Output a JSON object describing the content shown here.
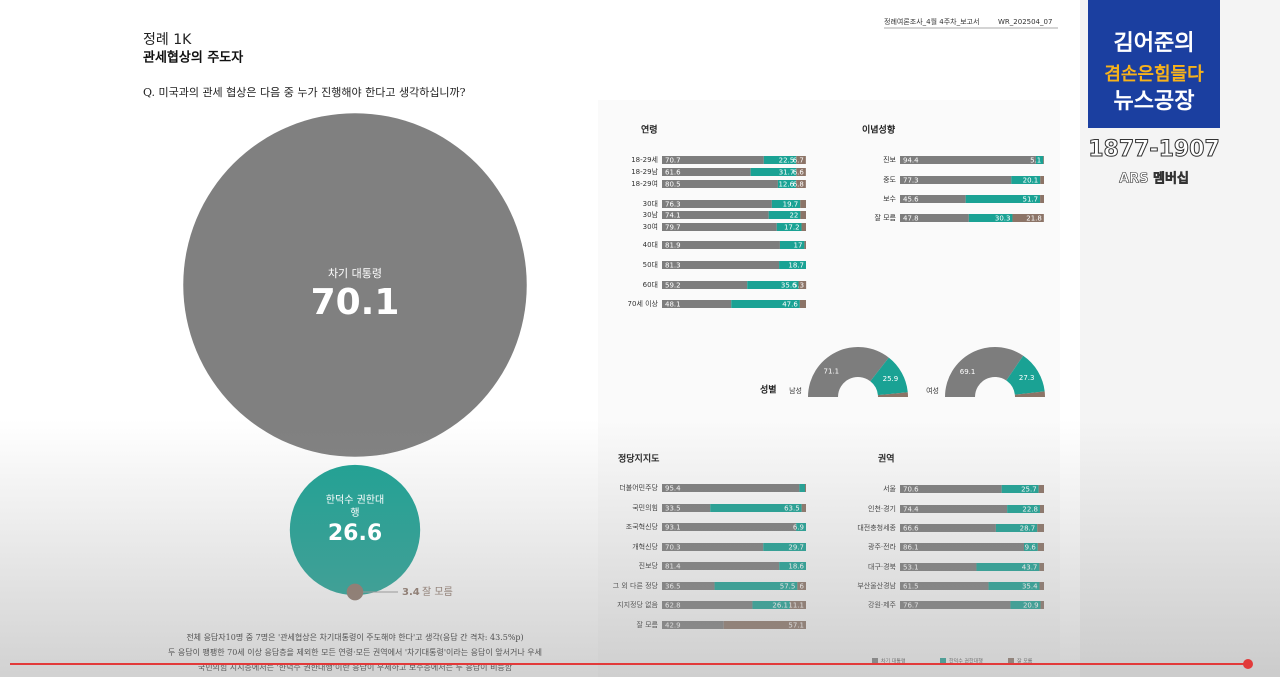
{
  "header": {
    "label": "정례 1K",
    "title": "관세협상의 주도자",
    "question": "Q. 미국과의 관세 협상은 다음 중 누가 진행해야 한다고 생각하십니까?",
    "report": "정례여론조사_4월 4주차_보고서",
    "code": "WR_202504_07"
  },
  "logo": {
    "line1": "김어준의",
    "line2": "겸손은힘들다",
    "line3": "뉴스공장",
    "phone": "1877-1907",
    "membership": "ARS 멤버십"
  },
  "legend": {
    "names": [
      "차기 대통령",
      "한덕수 권한대행",
      "잘 모름"
    ],
    "colors": [
      "#7d7d7d",
      "#1aa294",
      "#8c7467"
    ]
  },
  "chart_data": [
    {
      "type": "bubble",
      "categories": [
        "차기 대통령",
        "한덕수 권한대행",
        "잘 모름"
      ],
      "values": [
        70.1,
        26.6,
        3.4
      ],
      "colors": [
        "#808080",
        "#1aa294",
        "#8c7467"
      ]
    },
    {
      "type": "stacked_bar",
      "title": "연령",
      "xlim": [
        0,
        100
      ],
      "categories": [
        "18-29세",
        "18-29남",
        "18-29여",
        "30대",
        "30남",
        "30여",
        "40대",
        "50대",
        "60대",
        "70세 이상"
      ],
      "series": [
        {
          "values": [
            70.7,
            61.6,
            80.5,
            76.3,
            74.1,
            79.7,
            81.9,
            81.3,
            59.2,
            48.1
          ]
        },
        {
          "values": [
            22.5,
            31.7,
            12.6,
            19.7,
            22.0,
            17.2,
            17.0,
            18.7,
            35.6,
            47.6
          ]
        },
        {
          "values": [
            6.7,
            6.6,
            6.8,
            4.0,
            3.9,
            3.1,
            1.1,
            0,
            5.3,
            4.3
          ]
        }
      ]
    },
    {
      "type": "stacked_bar",
      "title": "이념성향",
      "xlim": [
        0,
        100
      ],
      "categories": [
        "진보",
        "중도",
        "보수",
        "잘 모름"
      ],
      "series": [
        {
          "values": [
            94.4,
            77.3,
            45.6,
            47.8
          ]
        },
        {
          "values": [
            5.1,
            20.1,
            51.7,
            30.3
          ]
        },
        {
          "values": [
            0.5,
            2.6,
            2.7,
            21.8
          ]
        }
      ]
    },
    {
      "type": "donut",
      "title": "성별",
      "categories": [
        "남성",
        "여성"
      ],
      "series": [
        {
          "values": [
            71.1,
            69.1
          ]
        },
        {
          "values": [
            25.9,
            27.3
          ]
        },
        {
          "values": [
            3.0,
            3.6
          ]
        }
      ]
    },
    {
      "type": "stacked_bar",
      "title": "정당지지도",
      "xlim": [
        0,
        100
      ],
      "categories": [
        "더불어민주당",
        "국민의힘",
        "조국혁신당",
        "개혁신당",
        "진보당",
        "그 외 다른 정당",
        "지지정당 없음",
        "잘 모름"
      ],
      "series": [
        {
          "values": [
            95.4,
            33.5,
            93.1,
            70.3,
            81.4,
            36.5,
            62.8,
            42.9
          ]
        },
        {
          "values": [
            3.9,
            63.5,
            6.9,
            29.7,
            18.6,
            57.5,
            26.1,
            0
          ]
        },
        {
          "values": [
            0.7,
            3.0,
            0,
            0,
            0,
            6.0,
            11.1,
            57.1
          ]
        }
      ]
    },
    {
      "type": "stacked_bar",
      "title": "권역",
      "xlim": [
        0,
        100
      ],
      "categories": [
        "서울",
        "인천·경기",
        "대전충청세종",
        "광주·전라",
        "대구·경북",
        "부산울산경남",
        "강원·제주"
      ],
      "series": [
        {
          "values": [
            70.6,
            74.4,
            66.6,
            86.1,
            53.1,
            61.5,
            76.7
          ]
        },
        {
          "values": [
            25.7,
            22.8,
            28.7,
            9.6,
            43.7,
            35.4,
            20.9
          ]
        },
        {
          "values": [
            3.7,
            2.8,
            4.7,
            4.3,
            3.2,
            3.1,
            2.4
          ]
        }
      ]
    }
  ],
  "notes": [
    "전체 응답자10명 중 7명은 '관세협상은 차기대통령이 주도해야 한다'고 생각(응답 간 격차: 43.5%p)",
    "두 응답이 팽팽한 70세 이상 응답층을 제외한 모든 연령·모든 권역에서 '차기대통령'이라는 응답이 앞서거나 우세",
    "국민의힘 지지층에서는 '한덕수 권한대행'이란 응답이 우세하고 보수층에서는 두 응답이 비등함"
  ]
}
